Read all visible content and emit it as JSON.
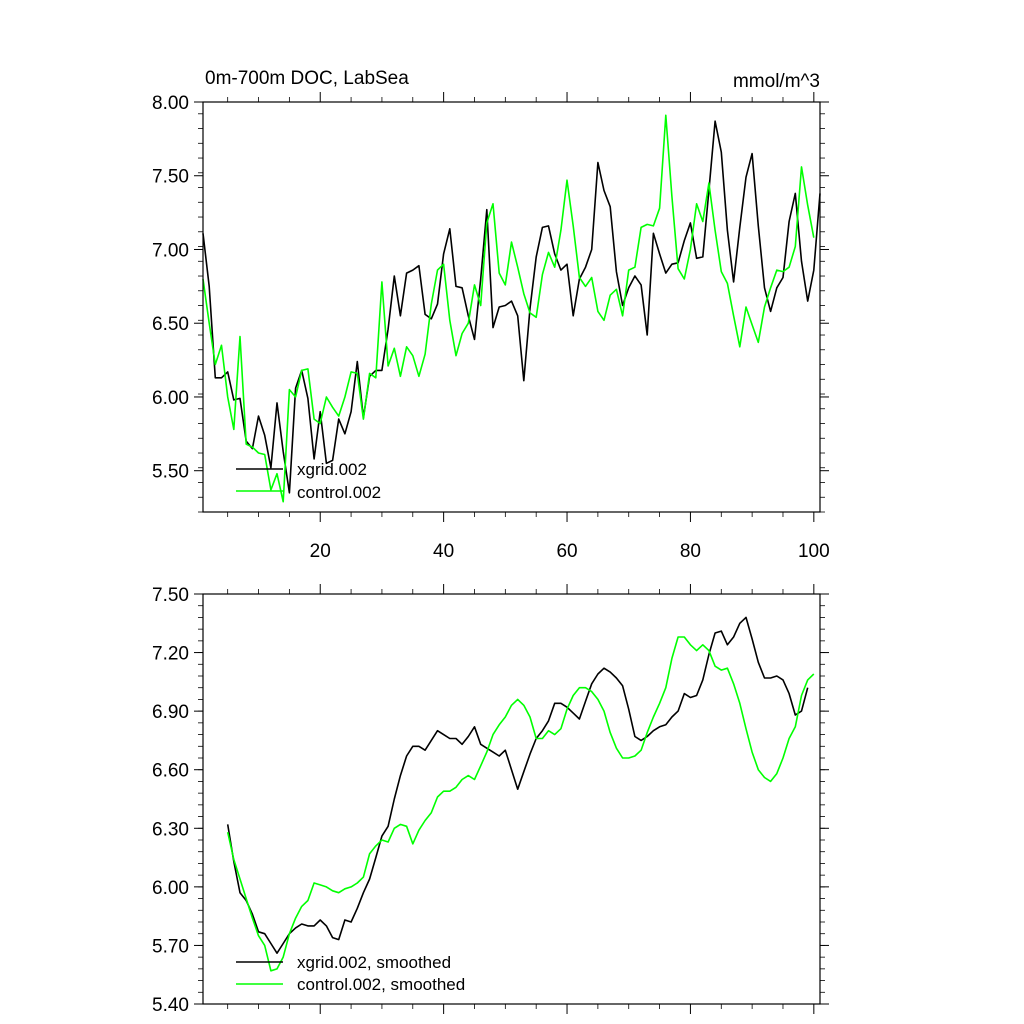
{
  "chart_data": [
    {
      "type": "line",
      "title": "0m-700m DOC, LabSea",
      "units": "mmol/m^3",
      "xlim": [
        1,
        101
      ],
      "ylim": [
        5.22,
        8.0
      ],
      "xticks": [
        "20",
        "40",
        "60",
        "80",
        "100"
      ],
      "yticks": [
        "8.00",
        "7.50",
        "7.00",
        "6.50",
        "6.00",
        "5.50"
      ],
      "legend": "bottom-left",
      "series": [
        {
          "name": "xgrid.002",
          "color": "#000000",
          "x_start": 1,
          "values": [
            7.11,
            6.75,
            6.13,
            6.13,
            6.17,
            5.98,
            5.99,
            5.7,
            5.65,
            5.87,
            5.74,
            5.52,
            5.96,
            5.63,
            5.35,
            6.06,
            6.18,
            5.99,
            5.58,
            5.9,
            5.55,
            5.57,
            5.85,
            5.75,
            5.9,
            6.24,
            5.86,
            6.14,
            6.18,
            6.18,
            6.46,
            6.82,
            6.55,
            6.84,
            6.86,
            6.89,
            6.56,
            6.53,
            6.63,
            6.97,
            7.14,
            6.75,
            6.74,
            6.55,
            6.39,
            6.8,
            7.27,
            6.47,
            6.61,
            6.62,
            6.65,
            6.55,
            6.11,
            6.6,
            6.95,
            7.15,
            7.16,
            6.97,
            6.86,
            6.9,
            6.55,
            6.8,
            6.88,
            7.0,
            7.59,
            7.4,
            7.29,
            6.85,
            6.62,
            6.74,
            6.82,
            6.76,
            6.42,
            7.11,
            6.97,
            6.84,
            6.9,
            6.91,
            7.06,
            7.18,
            6.94,
            6.95,
            7.4,
            7.87,
            7.66,
            7.13,
            6.78,
            7.15,
            7.49,
            7.65,
            7.16,
            6.74,
            6.58,
            6.74,
            6.81,
            7.19,
            7.38,
            6.92,
            6.65,
            6.86,
            7.38
          ],
          "marker": "none"
        },
        {
          "name": "control.002",
          "color": "#00ff00",
          "x_start": 1,
          "values": [
            6.8,
            6.5,
            6.22,
            6.35,
            6.0,
            5.78,
            6.41,
            5.68,
            5.66,
            5.62,
            5.61,
            5.37,
            5.48,
            5.29,
            6.05,
            6.0,
            6.18,
            6.19,
            5.85,
            5.82,
            6.0,
            5.93,
            5.87,
            6.0,
            6.17,
            6.16,
            5.85,
            6.16,
            6.13,
            6.78,
            6.21,
            6.33,
            6.14,
            6.34,
            6.28,
            6.14,
            6.29,
            6.63,
            6.86,
            6.9,
            6.52,
            6.28,
            6.43,
            6.5,
            6.76,
            6.62,
            7.18,
            7.31,
            6.84,
            6.76,
            7.05,
            6.88,
            6.7,
            6.57,
            6.54,
            6.83,
            6.98,
            6.88,
            7.13,
            7.47,
            7.16,
            6.81,
            6.75,
            6.81,
            6.58,
            6.52,
            6.69,
            6.73,
            6.55,
            6.86,
            6.88,
            7.15,
            7.17,
            7.16,
            7.28,
            7.91,
            7.36,
            6.87,
            6.8,
            7.0,
            7.31,
            7.19,
            7.45,
            7.13,
            6.85,
            6.77,
            6.55,
            6.34,
            6.61,
            6.49,
            6.37,
            6.61,
            6.74,
            6.86,
            6.85,
            6.88,
            7.02,
            7.56,
            7.3,
            7.08
          ],
          "marker": "none"
        }
      ]
    },
    {
      "type": "line",
      "title": "",
      "xlim": [
        1,
        101
      ],
      "ylim": [
        5.4,
        7.5
      ],
      "yticks": [
        "7.50",
        "7.20",
        "6.90",
        "6.60",
        "6.30",
        "6.00",
        "5.70",
        "5.40"
      ],
      "legend": "bottom-left",
      "series": [
        {
          "name": "xgrid.002, smoothed",
          "color": "#000000",
          "x_start": 5,
          "values": [
            6.32,
            6.13,
            5.97,
            5.93,
            5.86,
            5.77,
            5.76,
            5.71,
            5.66,
            5.71,
            5.76,
            5.79,
            5.81,
            5.8,
            5.8,
            5.83,
            5.8,
            5.74,
            5.73,
            5.83,
            5.82,
            5.89,
            5.97,
            6.04,
            6.15,
            6.26,
            6.31,
            6.45,
            6.57,
            6.67,
            6.72,
            6.72,
            6.7,
            6.75,
            6.8,
            6.78,
            6.76,
            6.76,
            6.73,
            6.77,
            6.82,
            6.73,
            6.71,
            6.69,
            6.67,
            6.7,
            6.6,
            6.5,
            6.59,
            6.68,
            6.76,
            6.8,
            6.85,
            6.94,
            6.94,
            6.92,
            6.89,
            6.86,
            6.95,
            7.04,
            7.09,
            7.12,
            7.1,
            7.07,
            7.03,
            6.91,
            6.77,
            6.75,
            6.77,
            6.8,
            6.82,
            6.83,
            6.87,
            6.9,
            6.99,
            6.97,
            6.98,
            7.06,
            7.19,
            7.3,
            7.31,
            7.24,
            7.28,
            7.35,
            7.38,
            7.27,
            7.15,
            7.07,
            7.07,
            7.08,
            7.06,
            6.99,
            6.88,
            6.9,
            7.02
          ],
          "marker": "none"
        },
        {
          "name": "control.002, smoothed",
          "color": "#00ff00",
          "x_start": 5,
          "values": [
            6.28,
            6.14,
            6.04,
            5.94,
            5.84,
            5.75,
            5.7,
            5.57,
            5.58,
            5.64,
            5.76,
            5.84,
            5.9,
            5.93,
            6.02,
            6.01,
            6.0,
            5.98,
            5.97,
            5.99,
            6.0,
            6.02,
            6.05,
            6.17,
            6.21,
            6.24,
            6.23,
            6.3,
            6.32,
            6.31,
            6.22,
            6.29,
            6.34,
            6.38,
            6.46,
            6.49,
            6.49,
            6.51,
            6.55,
            6.57,
            6.55,
            6.62,
            6.69,
            6.78,
            6.83,
            6.87,
            6.93,
            6.96,
            6.93,
            6.87,
            6.76,
            6.76,
            6.8,
            6.78,
            6.81,
            6.91,
            6.98,
            7.02,
            7.02,
            7.0,
            6.96,
            6.9,
            6.79,
            6.71,
            6.66,
            6.66,
            6.67,
            6.7,
            6.79,
            6.87,
            6.94,
            7.02,
            7.17,
            7.28,
            7.28,
            7.24,
            7.21,
            7.24,
            7.21,
            7.13,
            7.11,
            7.12,
            7.04,
            6.94,
            6.81,
            6.69,
            6.6,
            6.56,
            6.54,
            6.58,
            6.66,
            6.76,
            6.82,
            6.98,
            7.06,
            7.09
          ],
          "marker": "none"
        }
      ]
    }
  ]
}
